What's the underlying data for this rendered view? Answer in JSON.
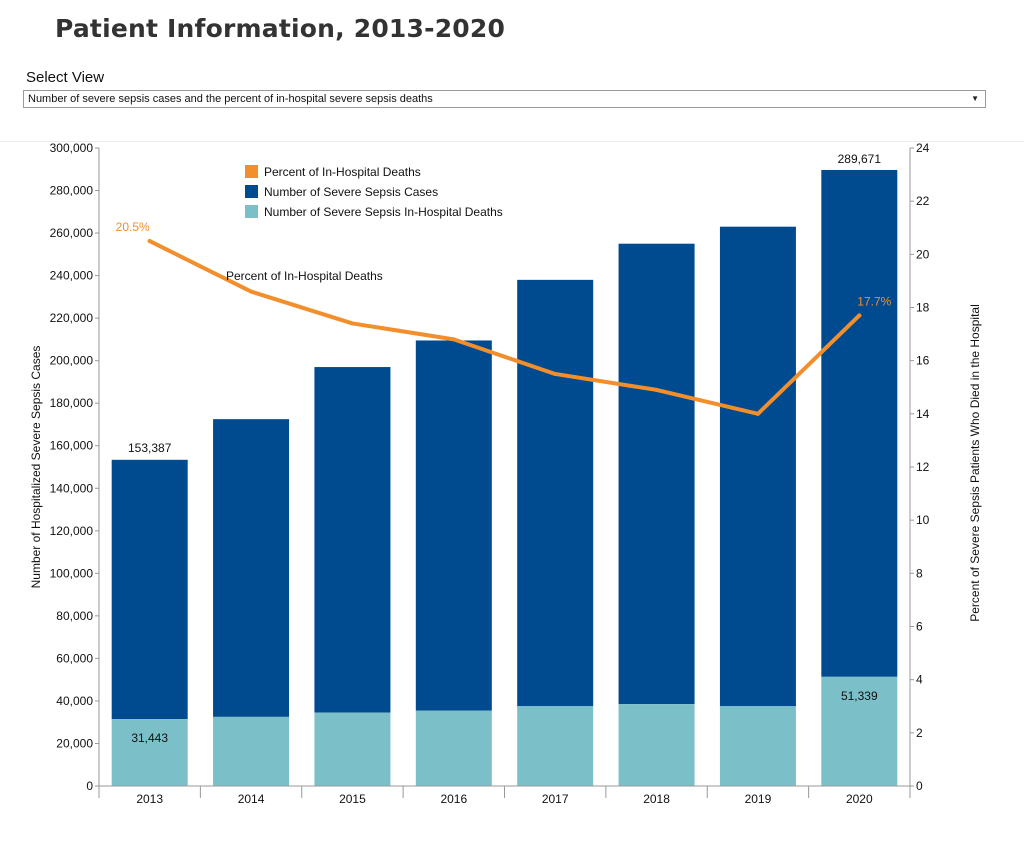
{
  "page": {
    "title": "Patient Information, 2013-2020",
    "select_label": "Select View",
    "select_value": "Number of severe sepsis cases and the percent of in-hospital severe sepsis deaths"
  },
  "colors": {
    "cases": "#004a8f",
    "deaths": "#7bbfc9",
    "percent": "#f28e2b",
    "axis": "#999999",
    "text": "#111111"
  },
  "chart_data": {
    "type": "bar",
    "categories": [
      "2013",
      "2014",
      "2015",
      "2016",
      "2017",
      "2018",
      "2019",
      "2020"
    ],
    "series": [
      {
        "name": "Number of Severe Sepsis Cases",
        "kind": "bar",
        "values": [
          153387,
          172500,
          197000,
          209500,
          238000,
          255000,
          263000,
          289671
        ]
      },
      {
        "name": "Number of Severe Sepsis In-Hospital Deaths",
        "kind": "bar",
        "values": [
          31443,
          32500,
          34500,
          35500,
          37500,
          38500,
          37500,
          51339
        ]
      },
      {
        "name": "Percent of In-Hospital Deaths",
        "kind": "line",
        "axis": "right",
        "values": [
          20.5,
          18.6,
          17.4,
          16.8,
          15.5,
          14.9,
          14.0,
          17.7
        ]
      }
    ],
    "ylabel": "Number of Hospitalized Severe Sepsis Cases",
    "y2label": "Percent of Severe Sepsis Patients Who Died in the Hospital",
    "ylim": [
      0,
      300000
    ],
    "y2lim": [
      0,
      24
    ],
    "yticks": [
      "0",
      "20,000",
      "40,000",
      "60,000",
      "80,000",
      "100,000",
      "120,000",
      "140,000",
      "160,000",
      "180,000",
      "200,000",
      "220,000",
      "240,000",
      "260,000",
      "280,000",
      "300,000"
    ],
    "y2ticks": [
      "0",
      "2",
      "4",
      "6",
      "8",
      "10",
      "12",
      "14",
      "16",
      "18",
      "20",
      "22",
      "24"
    ],
    "legend": {
      "placement": "top-left",
      "entries": [
        "Percent of In-Hospital Deaths",
        "Number of Severe Sepsis Cases",
        "Number of Severe Sepsis In-Hospital Deaths"
      ]
    },
    "labels": {
      "cases_2013": "153,387",
      "cases_2020": "289,671",
      "deaths_2013": "31,443",
      "deaths_2020": "51,339",
      "pct_2013": "20.5%",
      "pct_2020": "17.7%",
      "line_annotation": "Percent of In-Hospital Deaths"
    },
    "grid": false
  }
}
